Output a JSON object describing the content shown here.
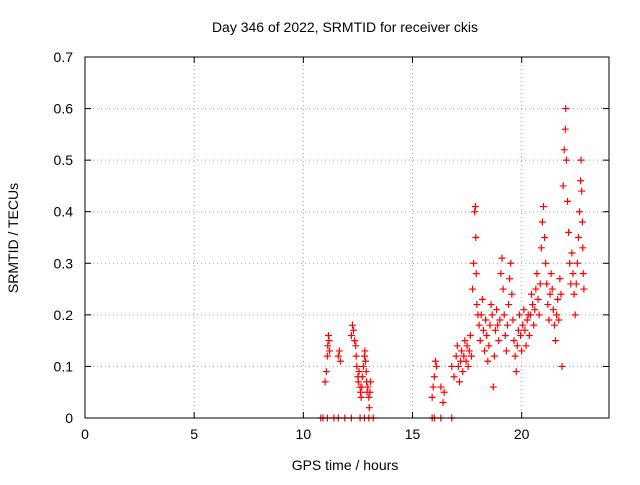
{
  "chart_data": {
    "type": "scatter",
    "title": "Day 346 of 2022, SRMTID for receiver ckis",
    "xlabel": "GPS time / hours",
    "ylabel": "SRMTID / TECUs",
    "xlim": [
      0,
      24
    ],
    "ylim": [
      0,
      0.7
    ],
    "xticks": [
      0,
      5,
      10,
      15,
      20
    ],
    "yticks": [
      0,
      0.1,
      0.2,
      0.3,
      0.4,
      0.5,
      0.6,
      0.7
    ],
    "grid": true,
    "legend": "none",
    "marker": "+",
    "colors": {
      "marker": "#ff0000",
      "grid": "#a0a0a0",
      "axes": "#000000"
    },
    "series": [
      {
        "name": "SRMTID",
        "points": [
          [
            10.8,
            0.0
          ],
          [
            10.9,
            0.0
          ],
          [
            11.1,
            0.0
          ],
          [
            11.4,
            0.0
          ],
          [
            11.6,
            0.0
          ],
          [
            11.9,
            0.0
          ],
          [
            12.2,
            0.0
          ],
          [
            12.6,
            0.0
          ],
          [
            12.8,
            0.0
          ],
          [
            13.0,
            0.0
          ],
          [
            13.2,
            0.0
          ],
          [
            11.0,
            0.07
          ],
          [
            11.05,
            0.09
          ],
          [
            11.1,
            0.12
          ],
          [
            11.12,
            0.14
          ],
          [
            11.15,
            0.16
          ],
          [
            11.18,
            0.15
          ],
          [
            11.2,
            0.13
          ],
          [
            11.6,
            0.12
          ],
          [
            11.65,
            0.13
          ],
          [
            11.7,
            0.11
          ],
          [
            12.2,
            0.16
          ],
          [
            12.25,
            0.18
          ],
          [
            12.3,
            0.17
          ],
          [
            12.35,
            0.15
          ],
          [
            12.4,
            0.14
          ],
          [
            12.42,
            0.12
          ],
          [
            12.45,
            0.1
          ],
          [
            12.5,
            0.08
          ],
          [
            12.52,
            0.07
          ],
          [
            12.55,
            0.09
          ],
          [
            12.6,
            0.06
          ],
          [
            12.62,
            0.05
          ],
          [
            12.65,
            0.04
          ],
          [
            12.68,
            0.06
          ],
          [
            12.7,
            0.08
          ],
          [
            12.75,
            0.1
          ],
          [
            12.8,
            0.12
          ],
          [
            12.82,
            0.13
          ],
          [
            12.85,
            0.11
          ],
          [
            12.88,
            0.09
          ],
          [
            12.9,
            0.07
          ],
          [
            12.92,
            0.05
          ],
          [
            12.95,
            0.06
          ],
          [
            13.0,
            0.04
          ],
          [
            13.02,
            0.02
          ],
          [
            13.05,
            0.05
          ],
          [
            13.08,
            0.07
          ],
          [
            15.9,
            0.0
          ],
          [
            16.0,
            0.0
          ],
          [
            16.3,
            0.0
          ],
          [
            16.8,
            0.0
          ],
          [
            15.9,
            0.04
          ],
          [
            15.95,
            0.06
          ],
          [
            16.0,
            0.08
          ],
          [
            16.05,
            0.11
          ],
          [
            16.1,
            0.1
          ],
          [
            16.3,
            0.06
          ],
          [
            16.4,
            0.03
          ],
          [
            16.45,
            0.05
          ],
          [
            16.8,
            0.1
          ],
          [
            16.9,
            0.08
          ],
          [
            17.0,
            0.12
          ],
          [
            17.05,
            0.14
          ],
          [
            17.1,
            0.1
          ],
          [
            17.15,
            0.07
          ],
          [
            17.2,
            0.11
          ],
          [
            17.25,
            0.13
          ],
          [
            17.3,
            0.09
          ],
          [
            17.35,
            0.12
          ],
          [
            17.4,
            0.15
          ],
          [
            17.45,
            0.11
          ],
          [
            17.5,
            0.14
          ],
          [
            17.55,
            0.1
          ],
          [
            17.6,
            0.13
          ],
          [
            17.65,
            0.16
          ],
          [
            17.7,
            0.12
          ],
          [
            17.75,
            0.25
          ],
          [
            17.8,
            0.3
          ],
          [
            17.85,
            0.4
          ],
          [
            17.88,
            0.41
          ],
          [
            17.9,
            0.35
          ],
          [
            17.92,
            0.28
          ],
          [
            17.95,
            0.22
          ],
          [
            18.0,
            0.2
          ],
          [
            18.05,
            0.18
          ],
          [
            18.1,
            0.15
          ],
          [
            18.15,
            0.2
          ],
          [
            18.2,
            0.23
          ],
          [
            18.25,
            0.17
          ],
          [
            18.3,
            0.13
          ],
          [
            18.35,
            0.19
          ],
          [
            18.4,
            0.16
          ],
          [
            18.45,
            0.11
          ],
          [
            18.5,
            0.14
          ],
          [
            18.55,
            0.18
          ],
          [
            18.6,
            0.22
          ],
          [
            18.65,
            0.2
          ],
          [
            18.7,
            0.06
          ],
          [
            18.75,
            0.12
          ],
          [
            18.8,
            0.17
          ],
          [
            18.85,
            0.21
          ],
          [
            18.9,
            0.18
          ],
          [
            18.95,
            0.15
          ],
          [
            19.0,
            0.19
          ],
          [
            19.05,
            0.28
          ],
          [
            19.1,
            0.31
          ],
          [
            19.15,
            0.25
          ],
          [
            19.2,
            0.2
          ],
          [
            19.25,
            0.16
          ],
          [
            19.3,
            0.13
          ],
          [
            19.35,
            0.18
          ],
          [
            19.4,
            0.22
          ],
          [
            19.45,
            0.27
          ],
          [
            19.5,
            0.3
          ],
          [
            19.55,
            0.24
          ],
          [
            19.6,
            0.19
          ],
          [
            19.65,
            0.15
          ],
          [
            19.7,
            0.12
          ],
          [
            19.75,
            0.09
          ],
          [
            19.8,
            0.14
          ],
          [
            19.85,
            0.17
          ],
          [
            19.9,
            0.2
          ],
          [
            19.95,
            0.16
          ],
          [
            20.0,
            0.13
          ],
          [
            20.05,
            0.18
          ],
          [
            20.1,
            0.21
          ],
          [
            20.15,
            0.17
          ],
          [
            20.2,
            0.14
          ],
          [
            20.25,
            0.19
          ],
          [
            20.3,
            0.2
          ],
          [
            20.35,
            0.16
          ],
          [
            20.4,
            0.2
          ],
          [
            20.45,
            0.24
          ],
          [
            20.5,
            0.22
          ],
          [
            20.55,
            0.18
          ],
          [
            20.6,
            0.21
          ],
          [
            20.65,
            0.25
          ],
          [
            20.7,
            0.28
          ],
          [
            20.75,
            0.23
          ],
          [
            20.8,
            0.2
          ],
          [
            20.85,
            0.26
          ],
          [
            20.9,
            0.33
          ],
          [
            20.95,
            0.38
          ],
          [
            21.0,
            0.41
          ],
          [
            21.05,
            0.35
          ],
          [
            21.1,
            0.3
          ],
          [
            21.15,
            0.26
          ],
          [
            21.2,
            0.22
          ],
          [
            21.25,
            0.19
          ],
          [
            21.3,
            0.24
          ],
          [
            21.35,
            0.28
          ],
          [
            21.4,
            0.25
          ],
          [
            21.45,
            0.21
          ],
          [
            21.5,
            0.18
          ],
          [
            21.55,
            0.15
          ],
          [
            21.6,
            0.2
          ],
          [
            21.65,
            0.23
          ],
          [
            21.7,
            0.19
          ],
          [
            21.75,
            0.27
          ],
          [
            21.8,
            0.24
          ],
          [
            21.85,
            0.1
          ],
          [
            21.9,
            0.45
          ],
          [
            21.95,
            0.52
          ],
          [
            22.0,
            0.56
          ],
          [
            22.02,
            0.6
          ],
          [
            22.05,
            0.5
          ],
          [
            22.1,
            0.42
          ],
          [
            22.15,
            0.36
          ],
          [
            22.2,
            0.3
          ],
          [
            22.25,
            0.26
          ],
          [
            22.3,
            0.32
          ],
          [
            22.35,
            0.28
          ],
          [
            22.4,
            0.24
          ],
          [
            22.45,
            0.2
          ],
          [
            22.5,
            0.26
          ],
          [
            22.55,
            0.3
          ],
          [
            22.6,
            0.35
          ],
          [
            22.65,
            0.4
          ],
          [
            22.7,
            0.46
          ],
          [
            22.72,
            0.5
          ],
          [
            22.75,
            0.44
          ],
          [
            22.78,
            0.38
          ],
          [
            22.8,
            0.33
          ],
          [
            22.82,
            0.28
          ],
          [
            22.85,
            0.25
          ]
        ]
      }
    ]
  }
}
